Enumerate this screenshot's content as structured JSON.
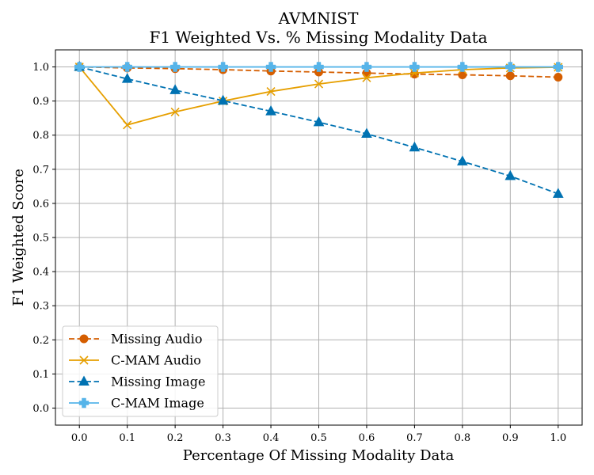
{
  "chart_data": {
    "type": "line",
    "title": "AVMNIST",
    "subtitle": "F1 Weighted Vs. % Missing Modality Data",
    "xlabel": "Percentage Of Missing Modality Data",
    "ylabel": "F1 Weighted Score",
    "x": [
      0.0,
      0.1,
      0.2,
      0.3,
      0.4,
      0.5,
      0.6,
      0.7,
      0.8,
      0.9,
      1.0
    ],
    "x_ticks": [
      "0.0",
      "0.1",
      "0.2",
      "0.3",
      "0.4",
      "0.5",
      "0.6",
      "0.7",
      "0.8",
      "0.9",
      "1.0"
    ],
    "y_ticks": [
      "0.0",
      "0.1",
      "0.2",
      "0.3",
      "0.4",
      "0.5",
      "0.6",
      "0.7",
      "0.8",
      "0.9",
      "1.0"
    ],
    "xlim": [
      -0.05,
      1.05
    ],
    "ylim": [
      -0.05,
      1.05
    ],
    "grid": true,
    "legend_position": "lower-left",
    "series": [
      {
        "name": "Missing Audio",
        "color": "#d55e00",
        "dash": "dashed",
        "marker": "circle",
        "values": [
          1.0,
          0.997,
          0.995,
          0.992,
          0.988,
          0.985,
          0.982,
          0.979,
          0.977,
          0.974,
          0.97
        ]
      },
      {
        "name": "C-MAM Audio",
        "color": "#e69f00",
        "dash": "solid",
        "marker": "x",
        "values": [
          1.0,
          0.83,
          0.868,
          0.9,
          0.928,
          0.95,
          0.968,
          0.982,
          0.992,
          0.997,
          0.999
        ]
      },
      {
        "name": "Missing Image",
        "color": "#0072b2",
        "dash": "dashed",
        "marker": "triangle",
        "values": [
          1.0,
          0.965,
          0.932,
          0.901,
          0.87,
          0.838,
          0.804,
          0.764,
          0.723,
          0.68,
          0.628
        ]
      },
      {
        "name": "C-MAM Image",
        "color": "#56b4e9",
        "dash": "solid",
        "marker": "plus",
        "values": [
          1.0,
          1.0,
          1.0,
          1.0,
          1.0,
          1.0,
          1.0,
          1.0,
          1.0,
          1.0,
          1.0
        ]
      }
    ]
  }
}
